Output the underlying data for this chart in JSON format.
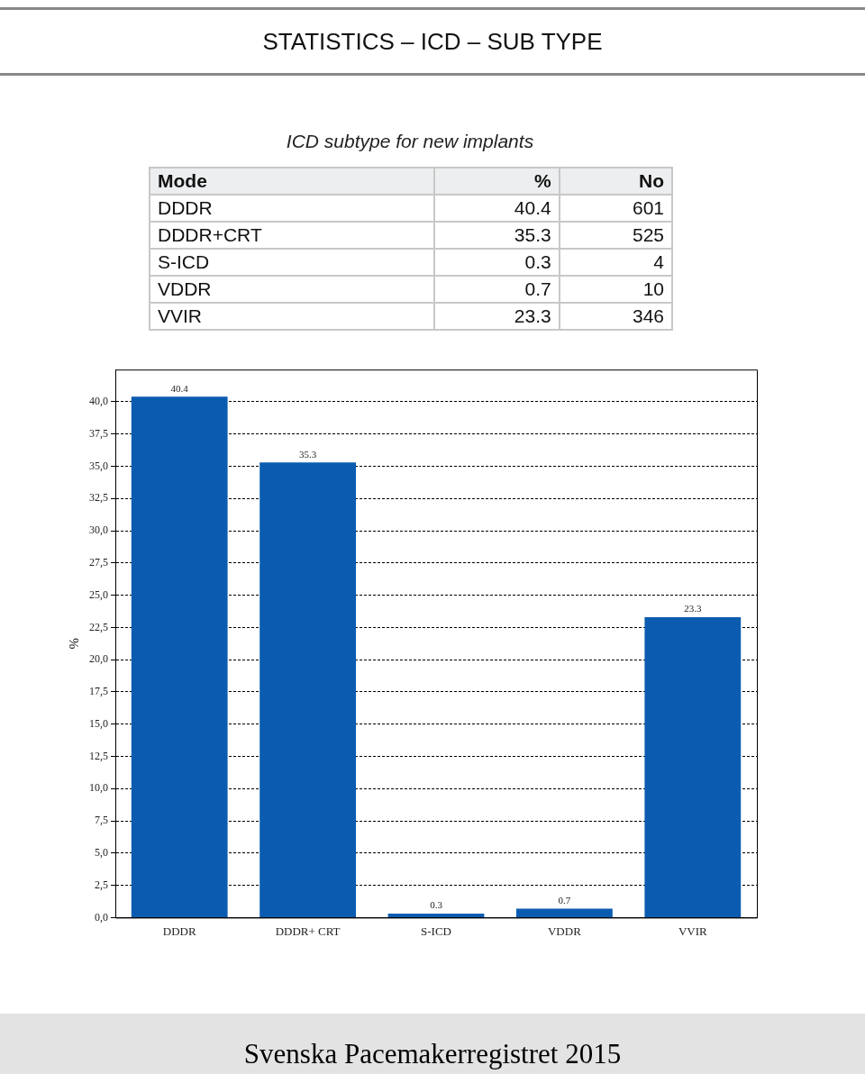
{
  "chart_data": [
    {
      "type": "other",
      "title": "STATISTICS – ICD – SUB TYPE",
      "subtitle": "ICD subtype for new implants",
      "xlabel": "Mode",
      "data_labels": true,
      "categories": [
        "DDDR",
        "DDDR+CRT",
        "S-ICD",
        "VDDR",
        "VVIR"
      ],
      "series": [
        {
          "name": "%",
          "values": [
            40.4,
            35.3,
            0.3,
            0.7,
            23.3
          ]
        },
        {
          "name": "No",
          "values": [
            601,
            525,
            4,
            10,
            346
          ]
        }
      ]
    },
    {
      "type": "bar",
      "ylabel": "%",
      "categories": [
        "DDDR",
        "DDDR+ CRT",
        "S-ICD",
        "VDDR",
        "VVIR"
      ],
      "values": [
        40.4,
        35.3,
        0.3,
        0.7,
        23.3
      ],
      "color": "#0b5cb0",
      "data_labels": true,
      "grid": "y",
      "legend": false,
      "ylim": [
        0,
        42.5
      ],
      "yticks": [
        {
          "value": 0,
          "label": "0,0"
        },
        {
          "value": 2.5,
          "label": "2,5"
        },
        {
          "value": 5,
          "label": "5,0"
        },
        {
          "value": 7.5,
          "label": "7,5"
        },
        {
          "value": 10,
          "label": "10,0"
        },
        {
          "value": 12.5,
          "label": "12,5"
        },
        {
          "value": 15,
          "label": "15,0"
        },
        {
          "value": 17.5,
          "label": "17,5"
        },
        {
          "value": 20,
          "label": "20,0"
        },
        {
          "value": 22.5,
          "label": "22,5"
        },
        {
          "value": 25,
          "label": "25,0"
        },
        {
          "value": 27.5,
          "label": "27,5"
        },
        {
          "value": 30,
          "label": "30,0"
        },
        {
          "value": 32.5,
          "label": "32,5"
        },
        {
          "value": 35,
          "label": "35,0"
        },
        {
          "value": 37.5,
          "label": "37,5"
        },
        {
          "value": 40,
          "label": "40,0"
        }
      ],
      "annotations": [
        "Svenska Pacemakerregistret 2015"
      ]
    }
  ]
}
